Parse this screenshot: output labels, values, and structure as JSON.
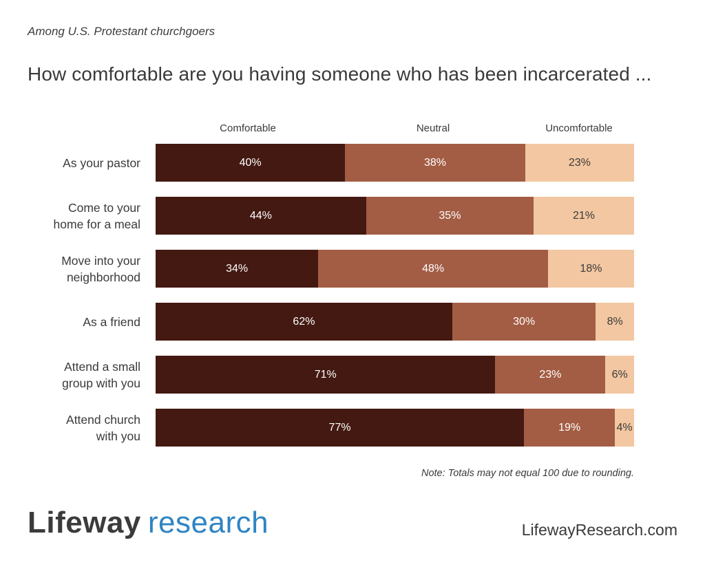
{
  "header": {
    "subtitle": "Among U.S. Protestant churchgoers",
    "title": "How comfortable are you having someone who has been incarcerated ..."
  },
  "colors": {
    "comfortable": "#431911",
    "neutral": "#a35d44",
    "uncomfortable": "#f2c7a1",
    "dark_text": "#ffffff",
    "light_text": "#3a3a3a"
  },
  "chart_data": {
    "type": "bar",
    "orientation": "horizontal",
    "stacked": true,
    "categories": [
      "As your pastor",
      "Come to your home for a meal",
      "Move into your neighborhood",
      "As a friend",
      "Attend a small group with you",
      "Attend church with you"
    ],
    "category_lines": [
      [
        "As your pastor"
      ],
      [
        "Come to your",
        "home for a meal"
      ],
      [
        "Move into your",
        "neighborhood"
      ],
      [
        "As a friend"
      ],
      [
        "Attend a small",
        "group with you"
      ],
      [
        "Attend church",
        "with you"
      ]
    ],
    "series": [
      {
        "name": "Comfortable",
        "values": [
          40,
          44,
          34,
          62,
          71,
          77
        ]
      },
      {
        "name": "Neutral",
        "values": [
          38,
          35,
          48,
          30,
          23,
          19
        ]
      },
      {
        "name": "Uncomfortable",
        "values": [
          23,
          21,
          18,
          8,
          6,
          4
        ]
      }
    ],
    "value_suffix": "%",
    "legend_position": "top",
    "grid": false
  },
  "footer": {
    "note": "Note: Totals may not equal 100 due to rounding.",
    "logo_part1": "Lifeway",
    "logo_part2": "research",
    "website": "LifewayResearch.com"
  }
}
